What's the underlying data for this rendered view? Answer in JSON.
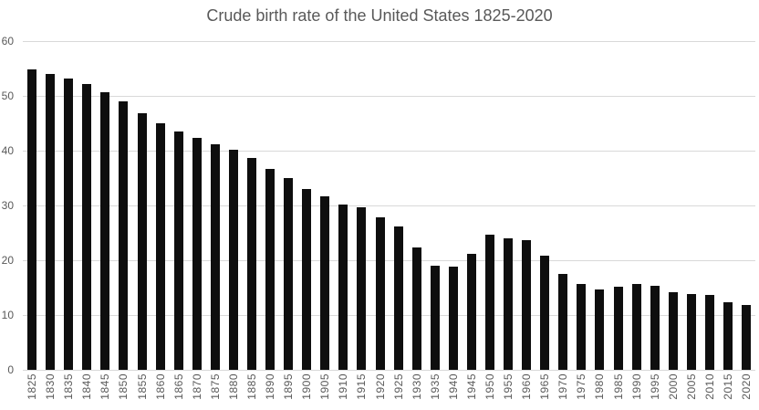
{
  "chart_data": {
    "type": "bar",
    "title": "Crude birth rate of the United States 1825-2020",
    "xlabel": "",
    "ylabel": "",
    "categories": [
      "1825",
      "1830",
      "1835",
      "1840",
      "1845",
      "1850",
      "1855",
      "1860",
      "1865",
      "1870",
      "1875",
      "1880",
      "1885",
      "1890",
      "1895",
      "1900",
      "1905",
      "1910",
      "1915",
      "1920",
      "1925",
      "1930",
      "1935",
      "1940",
      "1945",
      "1950",
      "1955",
      "1960",
      "1965",
      "1970",
      "1975",
      "1980",
      "1985",
      "1990",
      "1995",
      "2000",
      "2005",
      "2010",
      "2015",
      "2020"
    ],
    "values": [
      54.8,
      54.0,
      53.1,
      52.2,
      50.7,
      49.0,
      46.8,
      45.0,
      43.5,
      42.4,
      41.2,
      40.1,
      38.7,
      36.6,
      35.0,
      33.0,
      31.6,
      30.2,
      29.7,
      27.9,
      26.2,
      22.4,
      19.0,
      18.8,
      21.2,
      24.6,
      24.0,
      23.7,
      20.9,
      17.5,
      15.6,
      14.7,
      15.2,
      15.6,
      15.3,
      14.2,
      13.8,
      13.6,
      12.4,
      11.9
    ],
    "ylim": [
      0,
      60
    ],
    "yticks": [
      0,
      10,
      20,
      30,
      40,
      50,
      60
    ],
    "grid": true,
    "legend": false,
    "colors": {
      "bar": "#0e0e0e",
      "title": "#595959",
      "tick_label": "#595959",
      "gridline": "#d9d9d9",
      "background": "#ffffff"
    }
  }
}
